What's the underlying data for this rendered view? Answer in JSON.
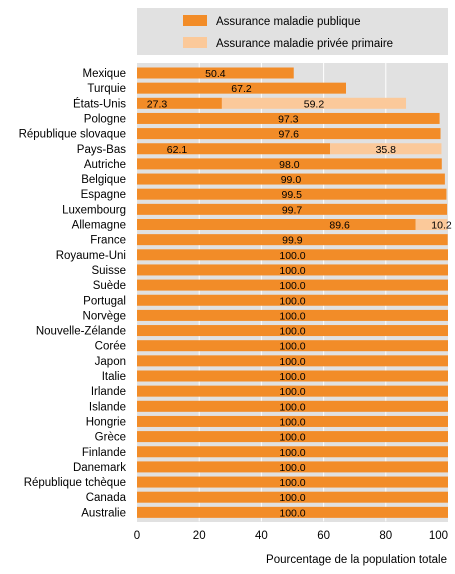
{
  "chart_data": {
    "type": "bar",
    "orientation": "horizontal",
    "stacked": true,
    "categories": [
      "Mexique",
      "Turquie",
      "États-Unis",
      "Pologne",
      "République slovaque",
      "Pays-Bas",
      "Autriche",
      "Belgique",
      "Espagne",
      "Luxembourg",
      "Allemagne",
      "France",
      "Royaume-Uni",
      "Suisse",
      "Suède",
      "Portugal",
      "Norvège",
      "Nouvelle-Zélande",
      "Corée",
      "Japon",
      "Italie",
      "Irlande",
      "Islande",
      "Hongrie",
      "Grèce",
      "Finlande",
      "Danemark",
      "République tchèque",
      "Canada",
      "Australie"
    ],
    "series": [
      {
        "name": "Assurance maladie publique",
        "color": "#f28c28",
        "values": [
          50.4,
          67.2,
          27.3,
          97.3,
          97.6,
          62.1,
          98.0,
          99.0,
          99.5,
          99.7,
          89.6,
          99.9,
          100.0,
          100.0,
          100.0,
          100.0,
          100.0,
          100.0,
          100.0,
          100.0,
          100.0,
          100.0,
          100.0,
          100.0,
          100.0,
          100.0,
          100.0,
          100.0,
          100.0,
          100.0
        ],
        "labels": [
          "50.4",
          "67.2",
          "27.3",
          "97.3",
          "97.6",
          "62.1",
          "98.0",
          "99.0",
          "99.5",
          "99.7",
          "89.6",
          "99.9",
          "100.0",
          "100.0",
          "100.0",
          "100.0",
          "100.0",
          "100.0",
          "100.0",
          "100.0",
          "100.0",
          "100.0",
          "100.0",
          "100.0",
          "100.0",
          "100.0",
          "100.0",
          "100.0",
          "100.0",
          "100.0"
        ]
      },
      {
        "name": "Assurance maladie privée primaire",
        "color": "#fbc99a",
        "values": [
          0,
          0,
          59.2,
          0,
          0,
          35.8,
          0,
          0,
          0,
          0,
          10.2,
          0,
          0,
          0,
          0,
          0,
          0,
          0,
          0,
          0,
          0,
          0,
          0,
          0,
          0,
          0,
          0,
          0,
          0,
          0
        ],
        "labels": [
          "",
          "",
          "59.2",
          "",
          "",
          "35.8",
          "",
          "",
          "",
          "",
          "10.2",
          "",
          "",
          "",
          "",
          "",
          "",
          "",
          "",
          "",
          "",
          "",
          "",
          "",
          "",
          "",
          "",
          "",
          "",
          ""
        ]
      }
    ],
    "xlabel": "Pourcentage de la population totale",
    "xlim": [
      0,
      100
    ],
    "xticks": [
      "0",
      "20",
      "40",
      "60",
      "80",
      "100"
    ],
    "grid": true,
    "legend_position": "top"
  }
}
